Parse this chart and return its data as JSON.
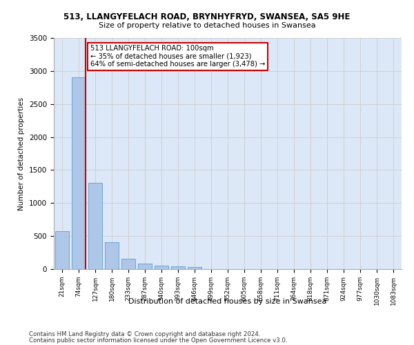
{
  "title1": "513, LLANGYFELACH ROAD, BRYNHYFRYD, SWANSEA, SA5 9HE",
  "title2": "Size of property relative to detached houses in Swansea",
  "xlabel": "Distribution of detached houses by size in Swansea",
  "ylabel": "Number of detached properties",
  "footnote1": "Contains HM Land Registry data © Crown copyright and database right 2024.",
  "footnote2": "Contains public sector information licensed under the Open Government Licence v3.0.",
  "categories": [
    "21sqm",
    "74sqm",
    "127sqm",
    "180sqm",
    "233sqm",
    "287sqm",
    "340sqm",
    "393sqm",
    "446sqm",
    "499sqm",
    "552sqm",
    "605sqm",
    "658sqm",
    "711sqm",
    "764sqm",
    "818sqm",
    "871sqm",
    "924sqm",
    "977sqm",
    "1030sqm",
    "1083sqm"
  ],
  "values": [
    570,
    2900,
    1310,
    410,
    155,
    80,
    55,
    45,
    35,
    0,
    0,
    0,
    0,
    0,
    0,
    0,
    0,
    0,
    0,
    0,
    0
  ],
  "bar_color": "#aec6e8",
  "bar_edgecolor": "#5a9fd4",
  "property_line_color": "#cc0000",
  "annotation_text": "513 LLANGYFELACH ROAD: 100sqm\n← 35% of detached houses are smaller (1,923)\n64% of semi-detached houses are larger (3,478) →",
  "annotation_box_facecolor": "#ffffff",
  "annotation_box_edgecolor": "#cc0000",
  "ylim": [
    0,
    3500
  ],
  "yticks": [
    0,
    500,
    1000,
    1500,
    2000,
    2500,
    3000,
    3500
  ],
  "background_color": "#ffffff",
  "grid_color": "#cccccc",
  "axes_bg_color": "#dce8f7"
}
